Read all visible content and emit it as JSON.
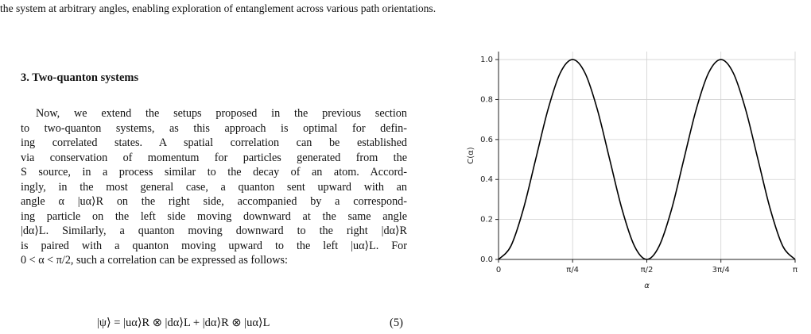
{
  "page": {
    "top_line": "the system at arbitrary angles, enabling exploration of entanglement across various path orientations.",
    "heading": "3. Two-quanton systems",
    "paragraph": [
      "Now, we extend the setups proposed in the previous section",
      "to two-quanton systems, as this approach is optimal for defin-",
      "ing correlated states. A spatial correlation can be established",
      "via conservation of momentum for particles generated from the",
      "S source, in a process similar to the decay of an atom. Accord-",
      "ingly, in the most general case, a quanton sent upward with an",
      "angle α |uα⟩R on the right side, accompanied by a correspond-",
      "ing particle on the left side moving downward at the same angle",
      "|dα⟩L. Similarly, a quanton moving downward to the right |dα⟩R",
      "is paired with a quanton moving upward to the left |uα⟩L. For",
      "0 < α < π/2, such a correlation can be expressed as follows:"
    ],
    "equation": "|ψ⟩ = |uα⟩R ⊗ |dα⟩L + |dα⟩R ⊗ |uα⟩L",
    "equation_number": "(5)"
  },
  "chart_data": {
    "type": "line",
    "xlabel": "α",
    "ylabel": "C(α)",
    "x": [
      0,
      0.131,
      0.262,
      0.393,
      0.524,
      0.654,
      0.785,
      0.916,
      1.047,
      1.178,
      1.309,
      1.44,
      1.571,
      1.702,
      1.833,
      1.963,
      2.094,
      2.225,
      2.356,
      2.487,
      2.618,
      2.749,
      2.88,
      3.011,
      3.142
    ],
    "values": [
      0,
      0.067,
      0.25,
      0.5,
      0.75,
      0.933,
      1,
      0.933,
      0.75,
      0.5,
      0.25,
      0.067,
      0,
      0.067,
      0.25,
      0.5,
      0.75,
      0.933,
      1,
      0.933,
      0.75,
      0.5,
      0.25,
      0.067,
      0
    ],
    "color": "#000000",
    "xlim": [
      0,
      3.142
    ],
    "ylim": [
      0,
      1.04
    ],
    "xticks": [
      0,
      {
        "value": 0.785,
        "label": "π/4"
      },
      {
        "value": 1.571,
        "label": "π/2"
      },
      {
        "value": 2.356,
        "label": "3π/4"
      },
      {
        "value": 3.142,
        "label": "π"
      }
    ],
    "yticks": [
      {
        "value": 0,
        "label": "0.0"
      },
      {
        "value": 0.2,
        "label": "0.2"
      },
      {
        "value": 0.4,
        "label": "0.4"
      },
      {
        "value": 0.6,
        "label": "0.6"
      },
      {
        "value": 0.8,
        "label": "0.8"
      },
      {
        "value": 1,
        "label": "1.0"
      }
    ],
    "grid": true
  }
}
